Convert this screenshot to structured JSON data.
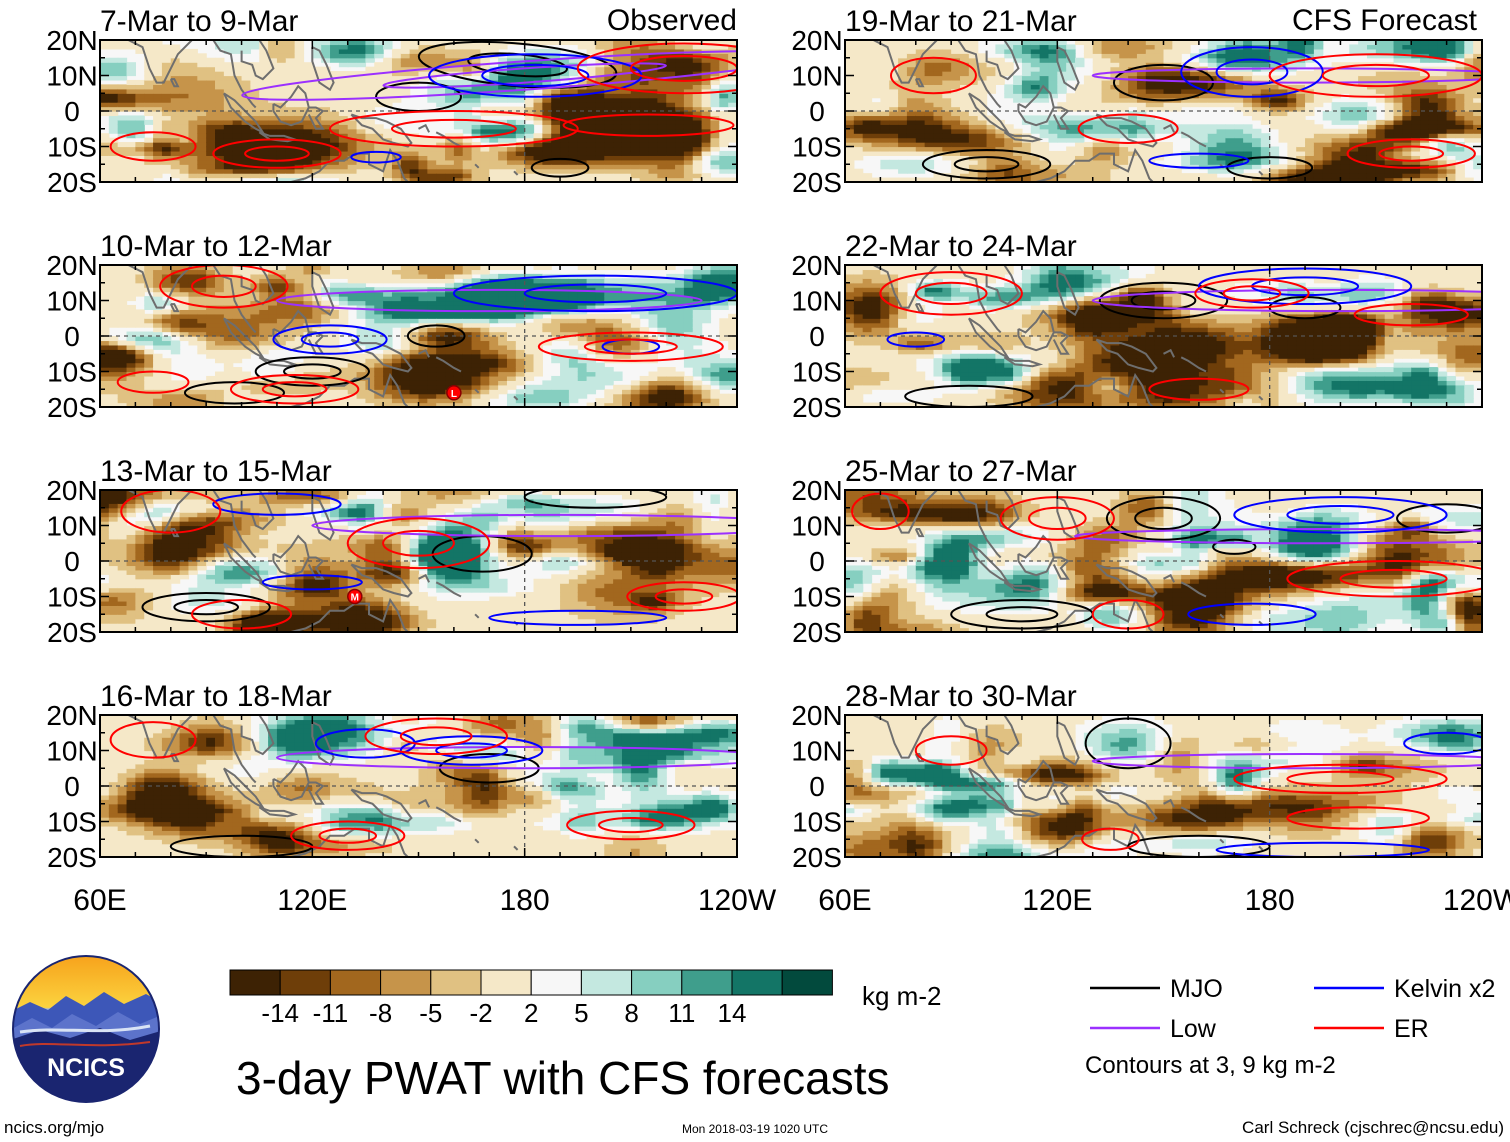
{
  "colors": {
    "scale": [
      "#3d2204",
      "#6e3e09",
      "#a2671e",
      "#c6944a",
      "#e0c182",
      "#f5e8c8",
      "#f7f7f7",
      "#c4e8e0",
      "#86cfc0",
      "#3f9e8c",
      "#137566",
      "#024a3d"
    ],
    "mjo": "#000000",
    "low": "#9b30ff",
    "kelvin": "#0000ff",
    "er": "#ff0000",
    "coast": "#6e6e6e",
    "dashed_ref": "#555555"
  },
  "labels": {
    "observed": "Observed",
    "forecast": "CFS Forecast",
    "title": "3-day PWAT with CFS forecasts",
    "units": "kg m-2",
    "url": "ncics.org/mjo",
    "timestamp": "Mon 2018-03-19 1020 UTC",
    "credit": "Carl Schreck (cjschrec@ncsu.edu)",
    "logo": "NCICS",
    "contours_note": "Contours at 3, 9 kg m-2"
  },
  "legend": [
    {
      "name": "MJO",
      "key": "mjo"
    },
    {
      "name": "Kelvin x2",
      "key": "kelvin"
    },
    {
      "name": "Low",
      "key": "low"
    },
    {
      "name": "ER",
      "key": "er"
    }
  ],
  "colorbar_ticks": [
    "-14",
    "-11",
    "-8",
    "-5",
    "-2",
    "2",
    "5",
    "8",
    "11",
    "14"
  ],
  "chart_data": {
    "type": "heatmap",
    "variable": "3-day precipitable water anomaly",
    "units": "kg m-2",
    "x_ticks": [
      "60E",
      "120E",
      "180",
      "120W"
    ],
    "x_range_deg": [
      60,
      240
    ],
    "y_ticks": [
      "20N",
      "10N",
      "0",
      "10S",
      "20S"
    ],
    "y_range_deg": [
      -20,
      20
    ],
    "reference_lines": {
      "equator": 0,
      "dateline": 180
    },
    "contour_levels": [
      3,
      9
    ],
    "panels": [
      {
        "period": "7-Mar to 9-Mar",
        "source": "Observed",
        "markers": []
      },
      {
        "period": "10-Mar to 12-Mar",
        "source": "Observed",
        "markers": [
          "L"
        ]
      },
      {
        "period": "13-Mar to 15-Mar",
        "source": "Observed",
        "markers": [
          "M"
        ]
      },
      {
        "period": "16-Mar to 18-Mar",
        "source": "Observed",
        "markers": []
      },
      {
        "period": "19-Mar to 21-Mar",
        "source": "CFS Forecast",
        "markers": []
      },
      {
        "period": "22-Mar to 24-Mar",
        "source": "CFS Forecast",
        "markers": []
      },
      {
        "period": "25-Mar to 27-Mar",
        "source": "CFS Forecast",
        "markers": []
      },
      {
        "period": "28-Mar to 30-Mar",
        "source": "CFS Forecast",
        "markers": []
      }
    ]
  }
}
